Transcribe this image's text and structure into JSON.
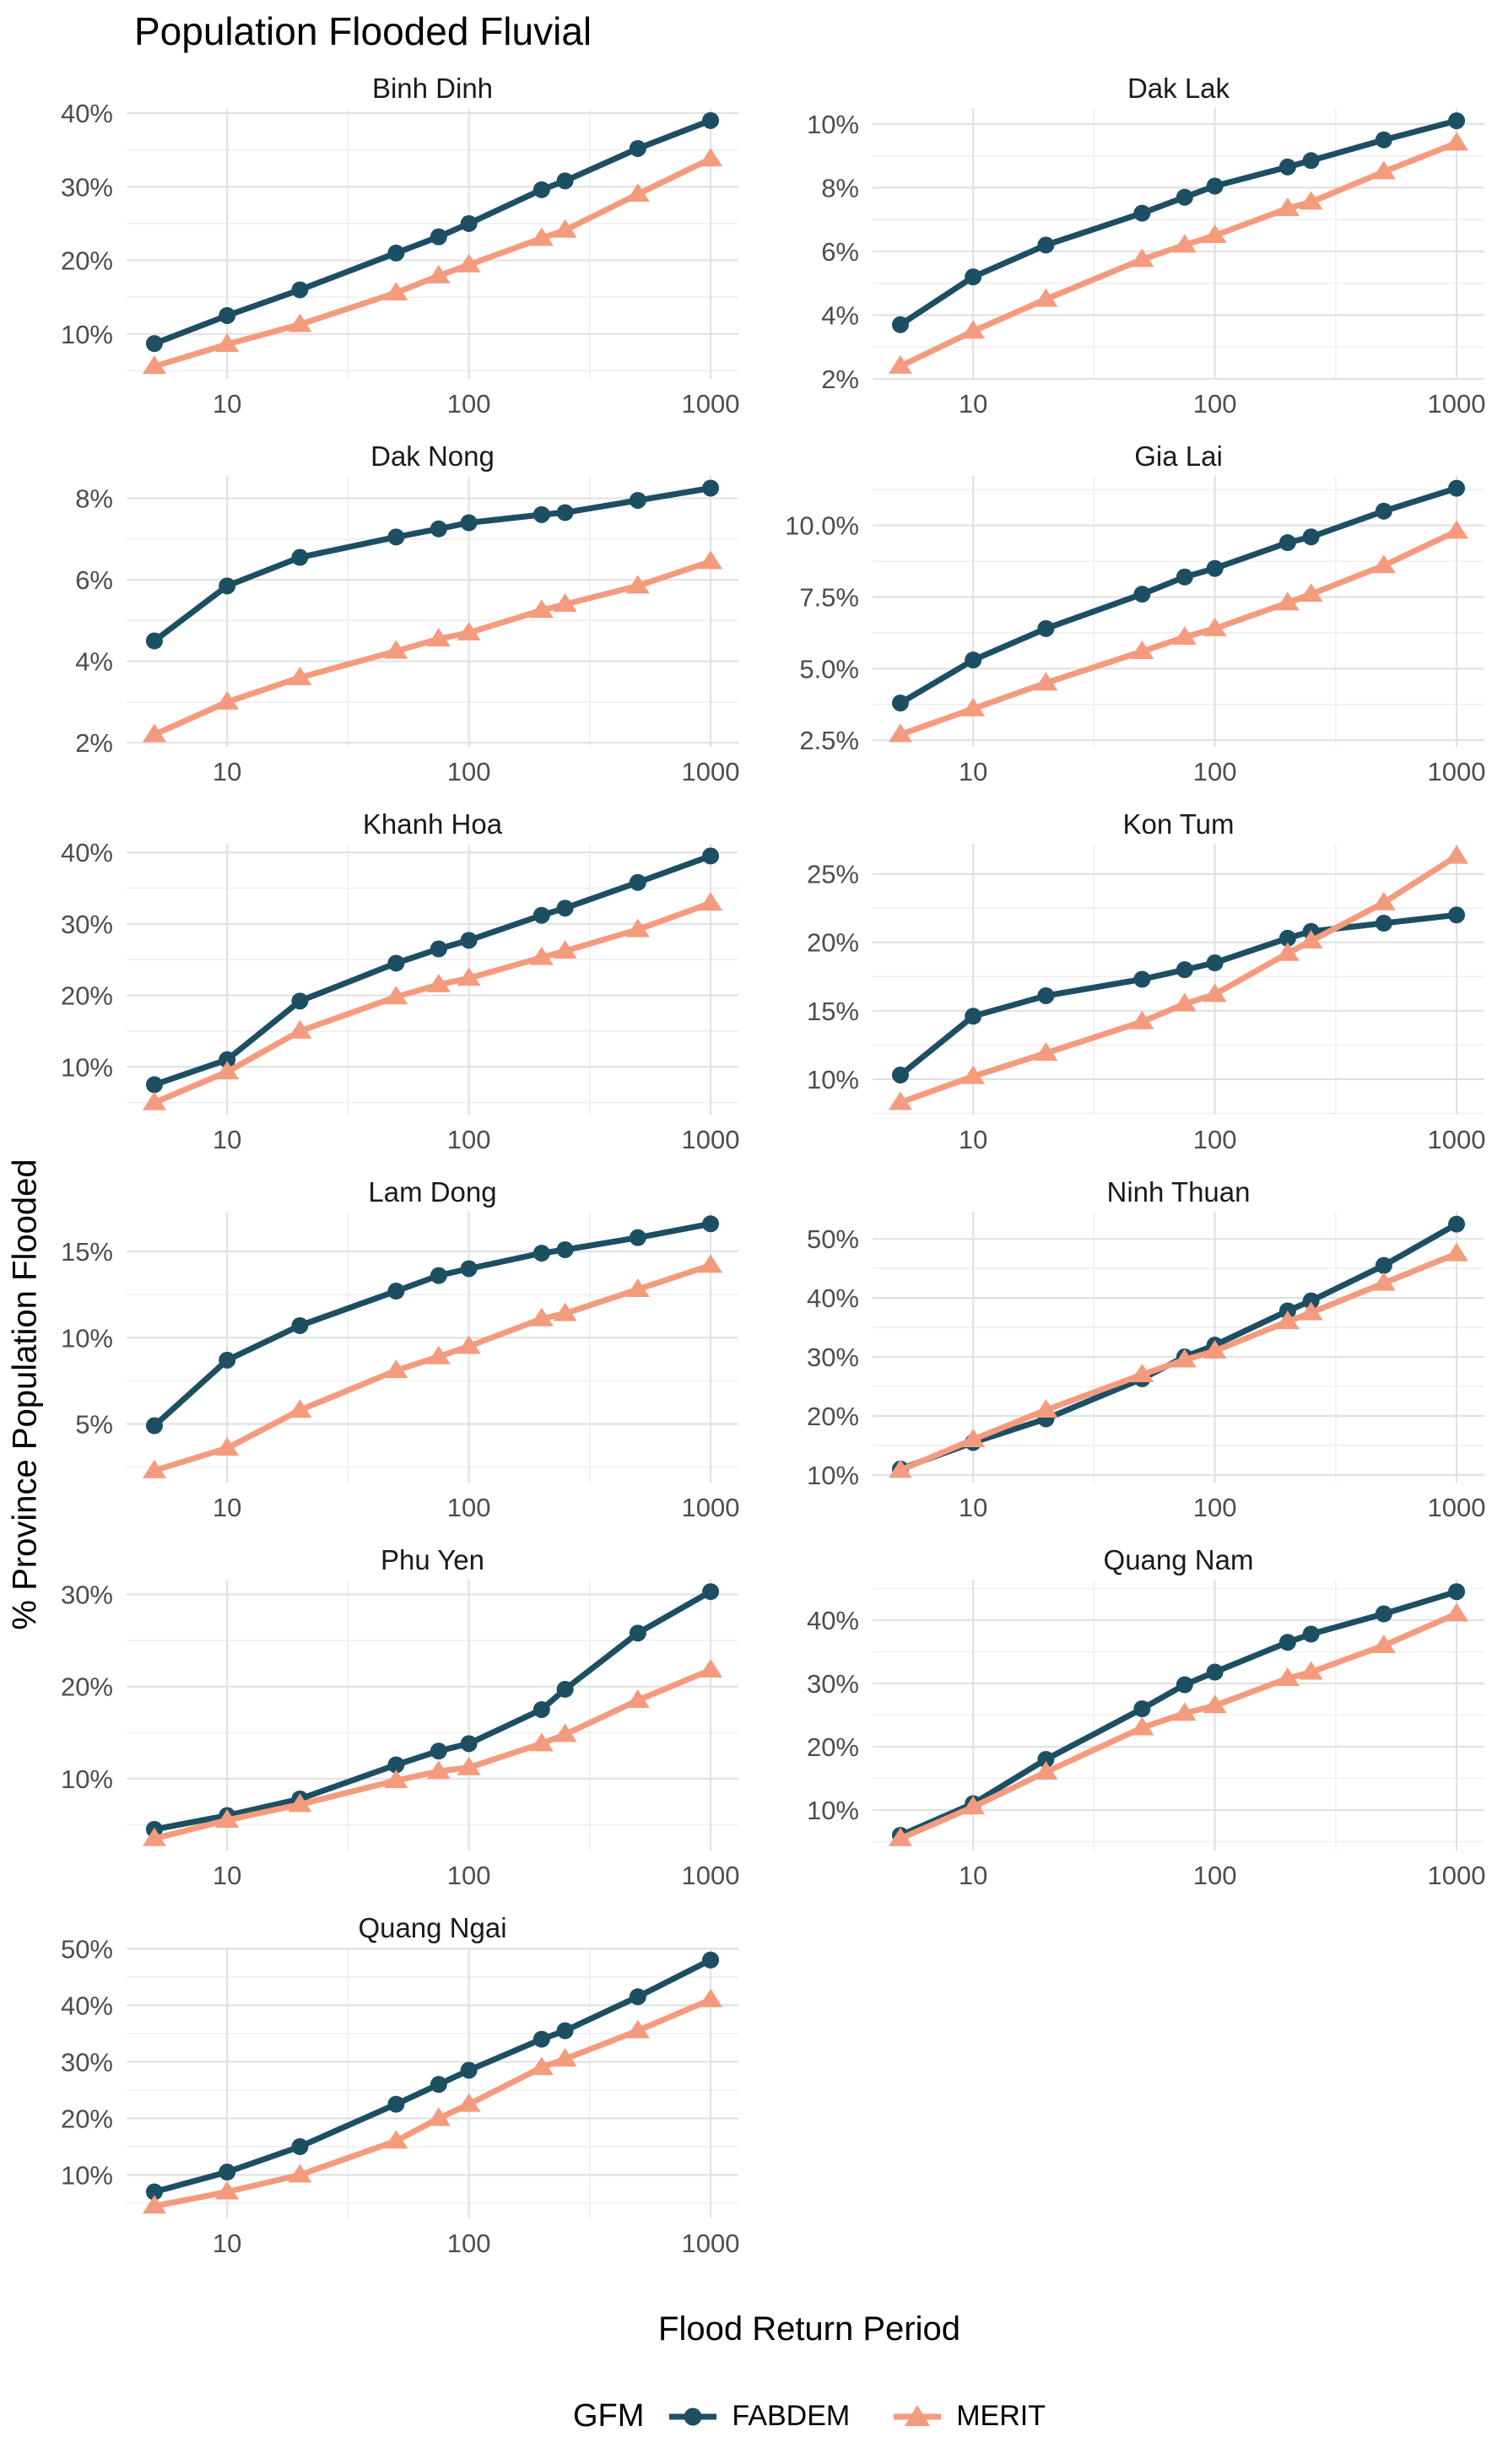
{
  "figure": {
    "title": "Population Flooded Fluvial",
    "x_axis_title": "Flood Return Period",
    "y_axis_title": "% Province Population Flooded"
  },
  "legend": {
    "title": "GFM",
    "entries": [
      {
        "label": "FABDEM",
        "color": "#1D4F63",
        "marker": "circle"
      },
      {
        "label": "MERIT",
        "color": "#F49B7E",
        "marker": "triangle"
      }
    ]
  },
  "axes": {
    "x_scale": "log10",
    "x_range": [
      5,
      1000
    ],
    "x_ticks": [
      10,
      100,
      1000
    ],
    "x_tick_labels": [
      "10",
      "100",
      "1000"
    ],
    "x_minor_ticks": [
      31.623,
      316.23
    ],
    "grid": "major+minor",
    "major_grid_color": "#E2E2E2",
    "minor_grid_color": "#EFEFEF"
  },
  "chart_data": [
    {
      "type": "line",
      "title": "Binh Dinh",
      "x": [
        5,
        10,
        20,
        50,
        75,
        100,
        200,
        250,
        500,
        1000
      ],
      "series": [
        {
          "name": "FABDEM",
          "values": [
            8.7,
            12.5,
            16.0,
            21.0,
            23.2,
            25.0,
            29.6,
            30.8,
            35.2,
            39.0
          ]
        },
        {
          "name": "MERIT",
          "values": [
            5.6,
            8.6,
            11.3,
            15.6,
            17.9,
            19.4,
            23.0,
            24.1,
            29.0,
            33.8
          ]
        }
      ],
      "y_ticks": [
        10,
        20,
        30,
        40
      ],
      "y_tick_labels": [
        "10%",
        "20%",
        "30%",
        "40%"
      ],
      "ylim": [
        3.9,
        40.7
      ]
    },
    {
      "type": "line",
      "title": "Dak Lak",
      "x": [
        5,
        10,
        20,
        50,
        75,
        100,
        200,
        250,
        500,
        1000
      ],
      "series": [
        {
          "name": "FABDEM",
          "values": [
            3.7,
            5.2,
            6.2,
            7.2,
            7.7,
            8.05,
            8.65,
            8.85,
            9.5,
            10.1
          ]
        },
        {
          "name": "MERIT",
          "values": [
            2.4,
            3.5,
            4.5,
            5.75,
            6.2,
            6.5,
            7.35,
            7.55,
            8.5,
            9.4
          ]
        }
      ],
      "y_ticks": [
        2,
        4,
        6,
        8,
        10
      ],
      "y_tick_labels": [
        "2%",
        "4%",
        "6%",
        "8%",
        "10%"
      ],
      "ylim": [
        2.0,
        10.5
      ]
    },
    {
      "type": "line",
      "title": "Dak Nong",
      "x": [
        5,
        10,
        20,
        50,
        75,
        100,
        200,
        250,
        500,
        1000
      ],
      "series": [
        {
          "name": "FABDEM",
          "values": [
            4.5,
            5.85,
            6.55,
            7.05,
            7.25,
            7.4,
            7.6,
            7.65,
            7.95,
            8.25
          ]
        },
        {
          "name": "MERIT",
          "values": [
            2.2,
            3.0,
            3.6,
            4.25,
            4.55,
            4.7,
            5.25,
            5.4,
            5.85,
            6.45
          ]
        }
      ],
      "y_ticks": [
        2,
        4,
        6,
        8
      ],
      "y_tick_labels": [
        "2%",
        "4%",
        "6%",
        "8%"
      ],
      "ylim": [
        1.9,
        8.55
      ]
    },
    {
      "type": "line",
      "title": "Gia Lai",
      "x": [
        5,
        10,
        20,
        50,
        75,
        100,
        200,
        250,
        500,
        1000
      ],
      "series": [
        {
          "name": "FABDEM",
          "values": [
            3.8,
            5.3,
            6.4,
            7.6,
            8.2,
            8.5,
            9.4,
            9.6,
            10.5,
            11.3
          ]
        },
        {
          "name": "MERIT",
          "values": [
            2.7,
            3.6,
            4.5,
            5.6,
            6.1,
            6.4,
            7.3,
            7.6,
            8.6,
            9.8
          ]
        }
      ],
      "y_ticks": [
        2.5,
        5,
        7.5,
        10
      ],
      "y_tick_labels": [
        "2.5%",
        "5.0%",
        "7.5%",
        "10.0%"
      ],
      "ylim": [
        2.27,
        11.73
      ]
    },
    {
      "type": "line",
      "title": "Khanh Hoa",
      "x": [
        5,
        10,
        20,
        50,
        75,
        100,
        200,
        250,
        500,
        1000
      ],
      "series": [
        {
          "name": "FABDEM",
          "values": [
            7.5,
            11.0,
            19.2,
            24.5,
            26.5,
            27.7,
            31.2,
            32.2,
            35.8,
            39.5
          ]
        },
        {
          "name": "MERIT",
          "values": [
            5.0,
            9.3,
            15.0,
            19.8,
            21.5,
            22.4,
            25.3,
            26.2,
            29.2,
            32.9
          ]
        }
      ],
      "y_ticks": [
        10,
        20,
        30,
        40
      ],
      "y_tick_labels": [
        "10%",
        "20%",
        "30%",
        "40%"
      ],
      "ylim": [
        3.3,
        41.2
      ]
    },
    {
      "type": "line",
      "title": "Kon Tum",
      "x": [
        5,
        10,
        20,
        50,
        75,
        100,
        200,
        250,
        500,
        1000
      ],
      "series": [
        {
          "name": "FABDEM",
          "values": [
            10.3,
            14.6,
            16.1,
            17.3,
            18.0,
            18.5,
            20.3,
            20.8,
            21.4,
            22.0
          ]
        },
        {
          "name": "MERIT",
          "values": [
            8.3,
            10.2,
            11.9,
            14.2,
            15.5,
            16.2,
            19.2,
            20.1,
            22.9,
            26.3
          ]
        }
      ],
      "y_ticks": [
        10,
        15,
        20,
        25
      ],
      "y_tick_labels": [
        "10%",
        "15%",
        "20%",
        "25%"
      ],
      "ylim": [
        7.4,
        27.2
      ]
    },
    {
      "type": "line",
      "title": "Lam Dong",
      "x": [
        5,
        10,
        20,
        50,
        75,
        100,
        200,
        250,
        500,
        1000
      ],
      "series": [
        {
          "name": "FABDEM",
          "values": [
            4.9,
            8.7,
            10.7,
            12.7,
            13.6,
            14.0,
            14.9,
            15.1,
            15.8,
            16.6
          ]
        },
        {
          "name": "MERIT",
          "values": [
            2.3,
            3.6,
            5.8,
            8.1,
            8.9,
            9.5,
            11.1,
            11.4,
            12.8,
            14.2
          ]
        }
      ],
      "y_ticks": [
        5,
        10,
        15
      ],
      "y_tick_labels": [
        "5%",
        "10%",
        "15%"
      ],
      "ylim": [
        1.6,
        17.3
      ]
    },
    {
      "type": "line",
      "title": "Ninh Thuan",
      "x": [
        5,
        10,
        20,
        50,
        75,
        100,
        200,
        250,
        500,
        1000
      ],
      "series": [
        {
          "name": "FABDEM",
          "values": [
            11.0,
            15.5,
            19.5,
            26.3,
            30.0,
            32.0,
            37.8,
            39.5,
            45.5,
            52.5
          ]
        },
        {
          "name": "MERIT",
          "values": [
            10.8,
            16.0,
            21.0,
            27.0,
            29.5,
            31.0,
            36.0,
            37.5,
            42.5,
            47.5
          ]
        }
      ],
      "y_ticks": [
        10,
        20,
        30,
        40,
        50
      ],
      "y_tick_labels": [
        "10%",
        "20%",
        "30%",
        "40%",
        "50%"
      ],
      "ylim": [
        8.7,
        54.6
      ]
    },
    {
      "type": "line",
      "title": "Phu Yen",
      "x": [
        5,
        10,
        20,
        50,
        75,
        100,
        200,
        250,
        500,
        1000
      ],
      "series": [
        {
          "name": "FABDEM",
          "values": [
            4.5,
            6.0,
            7.8,
            11.5,
            13.0,
            13.8,
            17.5,
            19.7,
            25.8,
            30.3
          ]
        },
        {
          "name": "MERIT",
          "values": [
            3.5,
            5.5,
            7.2,
            9.8,
            10.8,
            11.2,
            13.8,
            14.8,
            18.5,
            21.8
          ]
        }
      ],
      "y_ticks": [
        10,
        20,
        30
      ],
      "y_tick_labels": [
        "10%",
        "20%",
        "30%"
      ],
      "ylim": [
        2.2,
        31.6
      ]
    },
    {
      "type": "line",
      "title": "Quang Nam",
      "x": [
        5,
        10,
        20,
        50,
        75,
        100,
        200,
        250,
        500,
        1000
      ],
      "series": [
        {
          "name": "FABDEM",
          "values": [
            6.0,
            11.0,
            18.0,
            26.0,
            29.8,
            31.8,
            36.5,
            37.8,
            41.0,
            44.5
          ]
        },
        {
          "name": "MERIT",
          "values": [
            5.5,
            10.5,
            16.0,
            23.0,
            25.3,
            26.5,
            30.8,
            31.8,
            36.0,
            41.0
          ]
        }
      ],
      "y_ticks": [
        10,
        20,
        30,
        40
      ],
      "y_tick_labels": [
        "10%",
        "20%",
        "30%",
        "40%"
      ],
      "ylim": [
        3.6,
        46.4
      ]
    },
    {
      "type": "line",
      "title": "Quang Ngai",
      "x": [
        5,
        10,
        20,
        50,
        75,
        100,
        200,
        250,
        500,
        1000
      ],
      "series": [
        {
          "name": "FABDEM",
          "values": [
            7.0,
            10.5,
            15.0,
            22.5,
            26.0,
            28.5,
            34.0,
            35.5,
            41.5,
            48.0
          ]
        },
        {
          "name": "MERIT",
          "values": [
            4.5,
            7.0,
            10.0,
            16.0,
            20.0,
            22.5,
            29.0,
            30.5,
            35.5,
            41.0
          ]
        }
      ],
      "y_ticks": [
        10,
        20,
        30,
        40,
        50
      ],
      "y_tick_labels": [
        "10%",
        "20%",
        "30%",
        "40%",
        "50%"
      ],
      "ylim": [
        2.3,
        50.2
      ]
    }
  ]
}
